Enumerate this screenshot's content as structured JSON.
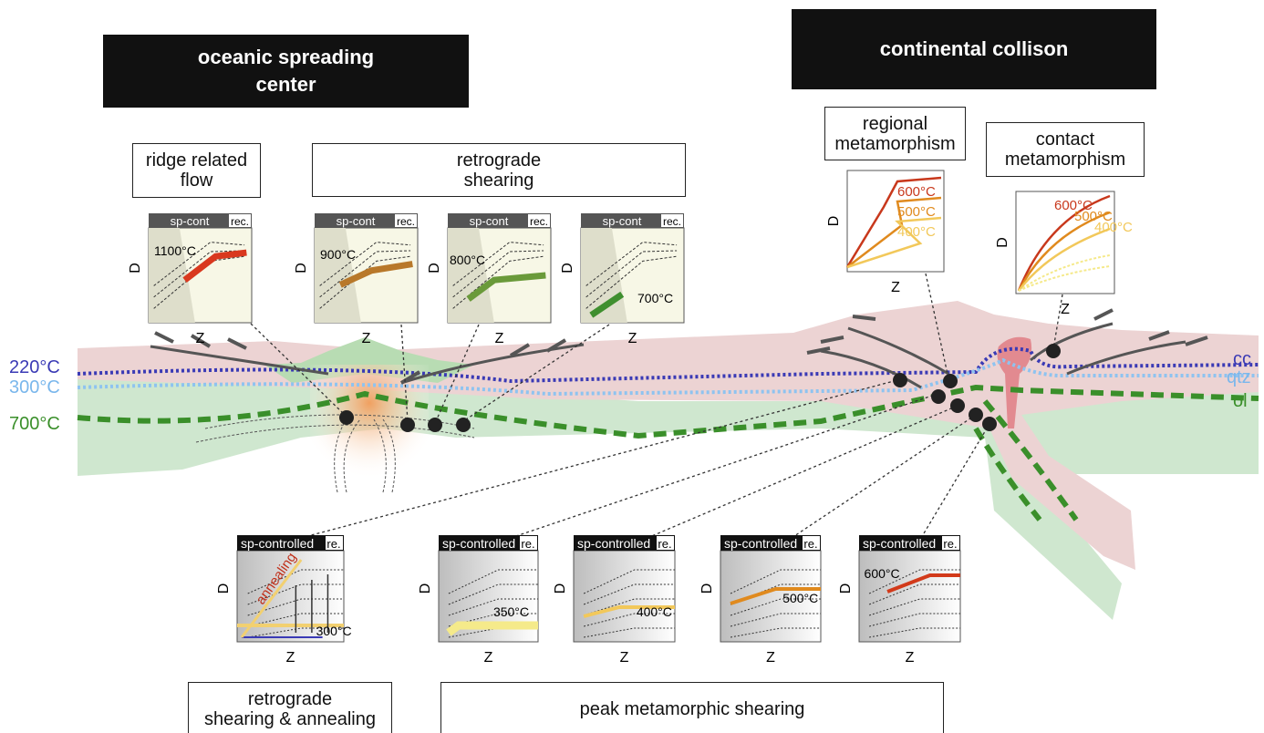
{
  "headers": {
    "left": "oceanic spreading\ncenter",
    "right": "continental collison"
  },
  "boxes": {
    "ridge": "ridge related\nflow",
    "retrograde": "retrograde\nshearing",
    "regional": "regional\nmetamorphism",
    "contact": "contact\nmetamorphism",
    "annealing": "retrograde\nshearing & annealing",
    "peak": "peak metamorphic shearing"
  },
  "isotherms": {
    "left": [
      "220°C",
      "300°C",
      "700°C"
    ],
    "right": [
      "cc",
      "qtz",
      "ol"
    ]
  },
  "top_insets": [
    {
      "header": "sp-cont",
      "record": "rec.",
      "temp": "1100°C",
      "y_axis": "D",
      "x_axis": "Z"
    },
    {
      "header": "sp-cont",
      "record": "rec.",
      "temp": "900°C",
      "y_axis": "D",
      "x_axis": "Z"
    },
    {
      "header": "sp-cont",
      "record": "rec.",
      "temp": "800°C",
      "y_axis": "D",
      "x_axis": "Z"
    },
    {
      "header": "sp-cont",
      "record": "rec.",
      "temp": "700°C",
      "y_axis": "D",
      "x_axis": "Z"
    }
  ],
  "collision_insets": [
    {
      "temps": [
        "600°C",
        "500°C",
        "400°C"
      ],
      "y_axis": "D",
      "x_axis": "Z"
    },
    {
      "temps": [
        "600°C",
        "500°C",
        "400°C"
      ],
      "y_axis": "D",
      "x_axis": "Z"
    }
  ],
  "bottom_insets": [
    {
      "header": "sp-controlled",
      "record": "re.",
      "temp": "300°C",
      "note": "annealing",
      "y_axis": "D",
      "x_axis": "Z"
    },
    {
      "header": "sp-controlled",
      "record": "re.",
      "temp": "350°C",
      "y_axis": "D",
      "x_axis": "Z"
    },
    {
      "header": "sp-controlled",
      "record": "re.",
      "temp": "400°C",
      "y_axis": "D",
      "x_axis": "Z"
    },
    {
      "header": "sp-controlled",
      "record": "re.",
      "temp": "500°C",
      "y_axis": "D",
      "x_axis": "Z"
    },
    {
      "header": "sp-controlled",
      "record": "re.",
      "temp": "600°C",
      "y_axis": "D",
      "x_axis": "Z"
    }
  ]
}
